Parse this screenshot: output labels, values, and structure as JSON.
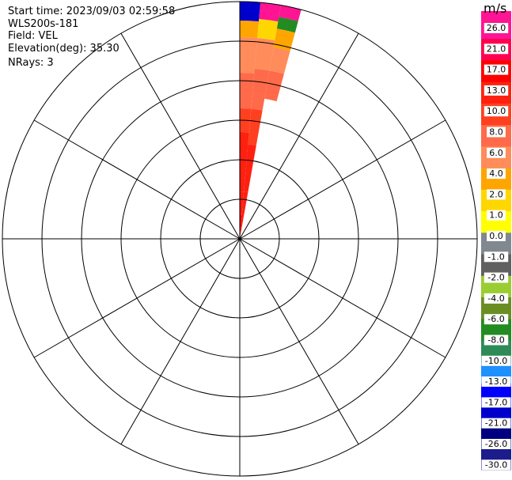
{
  "header": {
    "start_time": "Start time: 2023/09/03 02:59:58",
    "instrument": "WLS200s-181",
    "field": "Field: VEL",
    "elevation": "Elevation(deg): 35.30",
    "nrays": "NRays: 3"
  },
  "colorbar": {
    "unit": "m/s",
    "ticks": [
      "26.0",
      "21.0",
      "17.0",
      "13.0",
      "10.0",
      "8.0",
      "6.0",
      "4.0",
      "2.0",
      "1.0",
      "0.0",
      "-1.0",
      "-2.0",
      "-4.0",
      "-6.0",
      "-8.0",
      "-10.0",
      "-13.0",
      "-17.0",
      "-21.0",
      "-26.0",
      "-30.0"
    ],
    "colors": [
      "#ff1493",
      "#ff0050",
      "#ff0000",
      "#ff2010",
      "#ff4020",
      "#ff6a4a",
      "#ff8c5a",
      "#ffa500",
      "#ffd700",
      "#ffff00",
      "#808890",
      "#606060",
      "#9acd32",
      "#6b8e23",
      "#228b22",
      "#2e8b57",
      "#1e90ff",
      "#0000ff",
      "#0000cd",
      "#000080",
      "#1c1c8c"
    ]
  },
  "chart_data": {
    "type": "polar-ppi",
    "field": "VEL",
    "units": "m/s",
    "nrays": 3,
    "range_rings": 6,
    "spokes_deg": [
      0,
      30,
      60,
      90,
      120,
      150,
      180,
      210,
      240,
      270,
      300,
      330
    ],
    "rays": [
      {
        "azimuth_start": 0,
        "azimuth_end": 5,
        "segments": [
          {
            "r0": 0.0,
            "r1": 0.1,
            "value": 17.0
          },
          {
            "r0": 0.1,
            "r1": 0.2,
            "value": 13.0
          },
          {
            "r0": 0.2,
            "r1": 0.45,
            "value": 13.0
          },
          {
            "r0": 0.45,
            "r1": 0.55,
            "value": 10.0
          },
          {
            "r0": 0.55,
            "r1": 0.7,
            "value": 8.0
          },
          {
            "r0": 0.7,
            "r1": 0.85,
            "value": 6.0
          },
          {
            "r0": 0.85,
            "r1": 0.92,
            "value": 4.0
          },
          {
            "r0": 0.92,
            "r1": 1.0,
            "value": -17.0
          }
        ]
      },
      {
        "azimuth_start": 5,
        "azimuth_end": 10,
        "segments": [
          {
            "r0": 0.0,
            "r1": 0.2,
            "value": 13.0
          },
          {
            "r0": 0.2,
            "r1": 0.4,
            "value": 13.0
          },
          {
            "r0": 0.4,
            "r1": 0.55,
            "value": 10.0
          },
          {
            "r0": 0.55,
            "r1": 0.72,
            "value": 8.0
          },
          {
            "r0": 0.72,
            "r1": 0.85,
            "value": 6.0
          },
          {
            "r0": 0.85,
            "r1": 0.93,
            "value": 2.0
          },
          {
            "r0": 0.93,
            "r1": 1.0,
            "value": 26.0
          }
        ]
      },
      {
        "azimuth_start": 10,
        "azimuth_end": 15,
        "segments": [
          {
            "r0": 0.6,
            "r1": 0.72,
            "value": 8.0
          },
          {
            "r0": 0.72,
            "r1": 0.82,
            "value": 6.0
          },
          {
            "r0": 0.82,
            "r1": 0.9,
            "value": 4.0
          },
          {
            "r0": 0.9,
            "r1": 0.95,
            "value": -6.0
          },
          {
            "r0": 0.95,
            "r1": 1.0,
            "value": 26.0
          }
        ]
      }
    ]
  }
}
